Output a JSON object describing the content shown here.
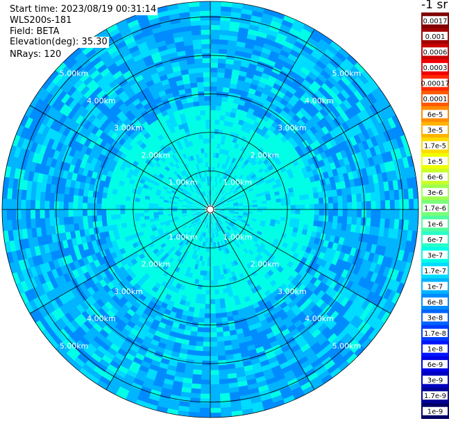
{
  "header": {
    "start_time": "Start time: 2023/08/19 00:31:14",
    "instrument": "WLS200s-181",
    "field": "Field: BETA",
    "elevation": "Elevation(deg): 35.30",
    "nrays": "NRays: 120"
  },
  "colorbar": {
    "unit_label": "-1 sr",
    "levels": [
      {
        "label": "0.0017",
        "color": "#7f0000"
      },
      {
        "label": "0.001",
        "color": "#a10000"
      },
      {
        "label": "0.0006",
        "color": "#c80000"
      },
      {
        "label": "0.0003",
        "color": "#f00000"
      },
      {
        "label": "0.00017",
        "color": "#ff2800"
      },
      {
        "label": "0.0001",
        "color": "#ff5a00"
      },
      {
        "label": "6e-5",
        "color": "#ff8c00"
      },
      {
        "label": "3e-5",
        "color": "#ffb400"
      },
      {
        "label": "1.7e-5",
        "color": "#ffdc00"
      },
      {
        "label": "1e-5",
        "color": "#f0ff00"
      },
      {
        "label": "6e-6",
        "color": "#c8ff28"
      },
      {
        "label": "3e-6",
        "color": "#a0ff50"
      },
      {
        "label": "1.7e-6",
        "color": "#78ff78"
      },
      {
        "label": "1e-6",
        "color": "#50ffa0"
      },
      {
        "label": "6e-7",
        "color": "#28ffc8"
      },
      {
        "label": "3e-7",
        "color": "#00ffe6"
      },
      {
        "label": "1.7e-7",
        "color": "#00dcff"
      },
      {
        "label": "1e-7",
        "color": "#00b4ff"
      },
      {
        "label": "6e-8",
        "color": "#008cff"
      },
      {
        "label": "3e-8",
        "color": "#0064ff"
      },
      {
        "label": "1.7e-8",
        "color": "#003cff"
      },
      {
        "label": "1e-8",
        "color": "#0014ff"
      },
      {
        "label": "6e-9",
        "color": "#0000e6"
      },
      {
        "label": "3e-9",
        "color": "#0000be"
      },
      {
        "label": "1.7e-9",
        "color": "#000096"
      },
      {
        "label": "1e-9",
        "color": "#000064"
      }
    ]
  },
  "chart_data": {
    "type": "heatmap",
    "projection": "polar (PPI)",
    "range_rings_km": [
      1,
      2,
      3,
      4,
      5
    ],
    "range_labels": [
      "1.00km",
      "2.00km",
      "3.00km",
      "4.00km",
      "5.00km"
    ],
    "max_range_km": 5.4,
    "radial_spokes_deg": [
      0,
      30,
      60,
      90,
      120,
      150,
      180,
      210,
      240,
      270,
      300,
      330
    ],
    "nrays": 120,
    "dominant_levels": [
      "6e-8",
      "1e-7",
      "1.7e-7",
      "3e-7",
      "6e-7"
    ],
    "near_field_level": "3e-7"
  }
}
